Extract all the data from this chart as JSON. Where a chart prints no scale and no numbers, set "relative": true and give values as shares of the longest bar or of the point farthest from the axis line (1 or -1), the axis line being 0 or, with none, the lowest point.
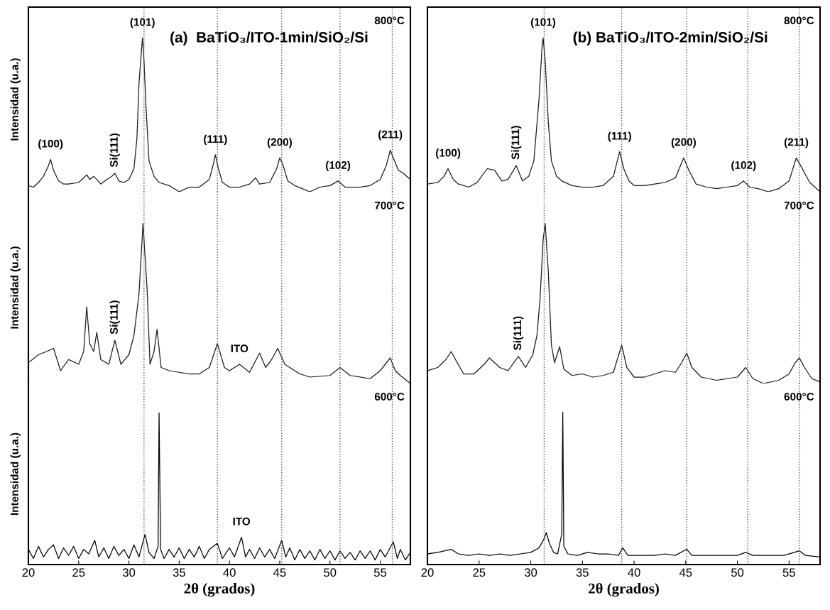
{
  "chart_data": [
    {
      "type": "line",
      "relative": true,
      "title": "(a)  BaTiO₃/ITO-1min/SiO₂/Si",
      "ylabel": "Intensidad (u.a.)",
      "xlim": [
        20,
        58
      ],
      "xticks": [
        20,
        25,
        30,
        35,
        40,
        45,
        50,
        55
      ],
      "tick_labels": false,
      "series": [
        {
          "color": "#1a1a1a",
          "x": [
            20,
            20.5,
            21,
            21.5,
            22,
            22.2,
            22.5,
            23,
            23.5,
            24,
            25,
            25.5,
            25.8,
            26.1,
            26.5,
            26.8,
            27.2,
            27.8,
            28.3,
            28.6,
            29,
            29.5,
            30,
            30.5,
            30.8,
            31.0,
            31.2,
            31.35,
            31.5,
            31.7,
            32,
            32.5,
            33,
            34,
            35,
            36,
            37,
            38,
            38.4,
            38.6,
            38.9,
            39.3,
            40,
            41,
            42,
            42.6,
            43,
            44,
            44.7,
            45.0,
            45.3,
            45.8,
            46.5,
            48,
            49,
            50,
            50.8,
            51.5,
            53,
            54,
            55,
            55.6,
            56.0,
            56.3,
            56.8,
            57.3,
            58
          ],
          "values": [
            0.04,
            0.03,
            0.06,
            0.1,
            0.17,
            0.21,
            0.14,
            0.07,
            0.05,
            0.05,
            0.06,
            0.09,
            0.11,
            0.08,
            0.1,
            0.08,
            0.05,
            0.08,
            0.1,
            0.12,
            0.07,
            0.06,
            0.08,
            0.15,
            0.35,
            0.7,
            0.88,
            1.0,
            0.85,
            0.55,
            0.2,
            0.1,
            0.06,
            0.04,
            0.0,
            0.03,
            0.03,
            0.08,
            0.18,
            0.24,
            0.15,
            0.06,
            0.03,
            0.03,
            0.05,
            0.09,
            0.05,
            0.06,
            0.15,
            0.22,
            0.18,
            0.07,
            0.04,
            0.0,
            0.03,
            0.04,
            0.07,
            0.03,
            0.03,
            0.04,
            0.08,
            0.17,
            0.27,
            0.22,
            0.14,
            0.12,
            0.08
          ]
        }
      ],
      "ref_lines": [
        {
          "axis": "x",
          "value": 31.5,
          "color": "#555555",
          "line_style": "dotted"
        },
        {
          "axis": "x",
          "value": 38.8,
          "color": "#555555",
          "line_style": "dotted"
        },
        {
          "axis": "x",
          "value": 45.2,
          "color": "#555555",
          "line_style": "dotted"
        },
        {
          "axis": "x",
          "value": 51.0,
          "color": "#555555",
          "line_style": "dotted"
        },
        {
          "axis": "x",
          "value": 56.2,
          "color": "#555555",
          "line_style": "dotted"
        }
      ],
      "annotations": [
        "800°C",
        {
          "text": "(100)",
          "x": 22.2,
          "y": 0.21
        },
        {
          "text": "Si(111)",
          "x": 28.6,
          "y": 0.12
        },
        {
          "text": "(101)",
          "x": 31.35,
          "y": 1.0
        },
        {
          "text": "(111)",
          "x": 38.6,
          "y": 0.24
        },
        {
          "text": "(200)",
          "x": 45.0,
          "y": 0.22
        },
        {
          "text": "(102)",
          "x": 50.8,
          "y": 0.07
        },
        {
          "text": "(211)",
          "x": 56.0,
          "y": 0.27
        }
      ]
    },
    {
      "type": "line",
      "relative": true,
      "ylabel": "Intensidad (u.a.)",
      "xlim": [
        20,
        58
      ],
      "xticks": [
        20,
        25,
        30,
        35,
        40,
        45,
        50,
        55
      ],
      "tick_labels": false,
      "series": [
        {
          "color": "#1a1a1a",
          "x": [
            20,
            21,
            21.8,
            22.5,
            23.2,
            24,
            25,
            25.5,
            25.8,
            26.1,
            26.5,
            26.8,
            27.2,
            28,
            28.6,
            29.2,
            30,
            30.5,
            31.0,
            31.4,
            31.8,
            32.1,
            32.5,
            32.8,
            33.2,
            34,
            35,
            36,
            37,
            38,
            38.8,
            39.5,
            40,
            41,
            42,
            43,
            43.6,
            44.2,
            44.8,
            45.5,
            46,
            47,
            48,
            50,
            51,
            52,
            54,
            55,
            55.5,
            56.0,
            56.5,
            57,
            58
          ],
          "values": [
            0.13,
            0.18,
            0.2,
            0.22,
            0.08,
            0.15,
            0.12,
            0.2,
            0.48,
            0.25,
            0.2,
            0.32,
            0.15,
            0.12,
            0.27,
            0.12,
            0.18,
            0.3,
            0.56,
            1.0,
            0.6,
            0.12,
            0.2,
            0.34,
            0.1,
            0.08,
            0.07,
            0.06,
            0.06,
            0.1,
            0.25,
            0.1,
            0.08,
            0.12,
            0.07,
            0.19,
            0.1,
            0.15,
            0.22,
            0.12,
            0.1,
            0.06,
            0.04,
            0.05,
            0.1,
            0.05,
            0.03,
            0.08,
            0.12,
            0.16,
            0.08,
            0.05,
            0.0
          ]
        }
      ],
      "ref_lines": [
        {
          "axis": "x",
          "value": 31.5,
          "color": "#555555",
          "line_style": "dotted"
        },
        {
          "axis": "x",
          "value": 38.8,
          "color": "#555555",
          "line_style": "dotted"
        },
        {
          "axis": "x",
          "value": 45.2,
          "color": "#555555",
          "line_style": "dotted"
        },
        {
          "axis": "x",
          "value": 51.0,
          "color": "#555555",
          "line_style": "dotted"
        },
        {
          "axis": "x",
          "value": 56.2,
          "color": "#555555",
          "line_style": "dotted"
        }
      ],
      "annotations": [
        "700°C",
        {
          "text": "Si(111)",
          "x": 28.6,
          "y": 0.27
        },
        {
          "text": "ITO",
          "x": 41,
          "y": 0.12
        }
      ]
    },
    {
      "type": "line",
      "relative": true,
      "ylabel": "Intensidad (u.a.)",
      "xlabel": "2θ (grados)",
      "xlim": [
        20,
        58
      ],
      "xticks": [
        20,
        25,
        30,
        35,
        40,
        45,
        50,
        55
      ],
      "tick_labels": "x",
      "series": [
        {
          "color": "#000000",
          "x": [
            20,
            20.5,
            21,
            21.5,
            22,
            22.5,
            23,
            23.5,
            24,
            24.5,
            25,
            25.5,
            26,
            26.6,
            27,
            27.5,
            28,
            28.5,
            29,
            29.5,
            30,
            30.5,
            31,
            31.6,
            32,
            32.5,
            32.9,
            33.0,
            33.15,
            33.5,
            34,
            34.5,
            35,
            35.5,
            36,
            36.5,
            37,
            37.5,
            38,
            38.8,
            39.3,
            40,
            40.5,
            41.2,
            41.6,
            42,
            42.5,
            43,
            43.5,
            44,
            44.5,
            45.2,
            45.6,
            46,
            46.5,
            47,
            47.5,
            48,
            48.5,
            49,
            49.5,
            50,
            50.5,
            51,
            51.5,
            52,
            52.5,
            53,
            53.5,
            54,
            54.5,
            55,
            55.5,
            56.3,
            56.7,
            57,
            57.5,
            58
          ],
          "values": [
            0.1,
            0.04,
            0.12,
            0.05,
            0.1,
            0.13,
            0.04,
            0.11,
            0.06,
            0.12,
            0.04,
            0.1,
            0.07,
            0.16,
            0.05,
            0.11,
            0.04,
            0.12,
            0.06,
            0.1,
            0.04,
            0.13,
            0.05,
            0.2,
            0.08,
            0.04,
            0.12,
            1.0,
            0.1,
            0.04,
            0.1,
            0.05,
            0.11,
            0.04,
            0.1,
            0.05,
            0.12,
            0.04,
            0.1,
            0.14,
            0.04,
            0.11,
            0.05,
            0.18,
            0.05,
            0.1,
            0.04,
            0.11,
            0.05,
            0.1,
            0.04,
            0.16,
            0.05,
            0.11,
            0.03,
            0.1,
            0.04,
            0.09,
            0.03,
            0.1,
            0.04,
            0.09,
            0.03,
            0.09,
            0.04,
            0.08,
            0.03,
            0.09,
            0.04,
            0.09,
            0.03,
            0.1,
            0.05,
            0.15,
            0.04,
            0.1,
            0.03,
            0.08
          ]
        }
      ],
      "ref_lines": [
        {
          "axis": "x",
          "value": 31.5,
          "color": "#555555",
          "line_style": "dotted"
        },
        {
          "axis": "x",
          "value": 38.8,
          "color": "#555555",
          "line_style": "dotted"
        },
        {
          "axis": "x",
          "value": 45.2,
          "color": "#555555",
          "line_style": "dotted"
        },
        {
          "axis": "x",
          "value": 51.0,
          "color": "#555555",
          "line_style": "dotted"
        },
        {
          "axis": "x",
          "value": 56.2,
          "color": "#555555",
          "line_style": "dotted"
        }
      ],
      "annotations": [
        "600°C",
        {
          "text": "ITO",
          "x": 41.2,
          "y": 0.18
        }
      ]
    },
    {
      "type": "line",
      "relative": true,
      "title": "(b) BaTiO₃/ITO-2min/SiO₂/Si",
      "xlim": [
        20,
        58
      ],
      "xticks": [
        20,
        25,
        30,
        35,
        40,
        45,
        50,
        55
      ],
      "tick_labels": false,
      "series": [
        {
          "color": "#1a1a1a",
          "x": [
            20,
            21,
            21.6,
            22.0,
            22.5,
            23,
            24,
            24.8,
            25.8,
            26.5,
            27.2,
            27.8,
            28.6,
            29.2,
            29.8,
            30.3,
            30.8,
            31.1,
            31.2,
            31.4,
            31.7,
            32.0,
            32.5,
            33,
            34,
            35,
            36,
            37,
            38,
            38.6,
            39,
            39.5,
            40,
            41,
            42,
            43,
            44,
            44.8,
            45.3,
            46,
            47,
            48,
            49,
            50,
            50.6,
            51.2,
            52,
            53,
            54,
            55,
            55.7,
            56.2,
            57,
            58
          ],
          "values": [
            0.05,
            0.06,
            0.1,
            0.15,
            0.08,
            0.05,
            0.03,
            0.06,
            0.15,
            0.14,
            0.07,
            0.08,
            0.17,
            0.07,
            0.1,
            0.2,
            0.6,
            0.95,
            1.0,
            0.85,
            0.45,
            0.2,
            0.1,
            0.07,
            0.04,
            0.03,
            0.03,
            0.04,
            0.1,
            0.26,
            0.15,
            0.07,
            0.04,
            0.04,
            0.05,
            0.06,
            0.09,
            0.22,
            0.14,
            0.05,
            0.03,
            0.02,
            0.03,
            0.04,
            0.07,
            0.03,
            0.02,
            0.0,
            0.02,
            0.07,
            0.22,
            0.16,
            0.06,
            0.0
          ]
        }
      ],
      "ref_lines": [
        {
          "axis": "x",
          "value": 31.3,
          "color": "#555555",
          "line_style": "dotted"
        },
        {
          "axis": "x",
          "value": 38.8,
          "color": "#555555",
          "line_style": "dotted"
        },
        {
          "axis": "x",
          "value": 45.1,
          "color": "#555555",
          "line_style": "dotted"
        },
        {
          "axis": "x",
          "value": 51.0,
          "color": "#555555",
          "line_style": "dotted"
        },
        {
          "axis": "x",
          "value": 56.0,
          "color": "#555555",
          "line_style": "dotted"
        }
      ],
      "annotations": [
        "800°C",
        {
          "text": "(100)",
          "x": 22.0,
          "y": 0.15
        },
        {
          "text": "Si(111)",
          "x": 28.6,
          "y": 0.17
        },
        {
          "text": "(101)",
          "x": 31.2,
          "y": 1.0
        },
        {
          "text": "(111)",
          "x": 38.6,
          "y": 0.26
        },
        {
          "text": "(200)",
          "x": 44.8,
          "y": 0.22
        },
        {
          "text": "(102)",
          "x": 50.6,
          "y": 0.07
        },
        {
          "text": "(211)",
          "x": 55.7,
          "y": 0.22
        }
      ]
    },
    {
      "type": "line",
      "relative": true,
      "xlim": [
        20,
        58
      ],
      "xticks": [
        20,
        25,
        30,
        35,
        40,
        45,
        50,
        55
      ],
      "tick_labels": false,
      "series": [
        {
          "color": "#1a1a1a",
          "x": [
            20,
            21,
            21.8,
            22.3,
            22.8,
            23.5,
            24.5,
            25.5,
            26,
            27,
            27.8,
            28.8,
            29.5,
            30.2,
            30.6,
            30.9,
            31.2,
            31.4,
            31.7,
            32.0,
            32.3,
            32.8,
            33.2,
            34,
            35,
            36,
            37,
            38,
            38.8,
            39.3,
            40,
            41,
            42,
            43,
            44,
            44.6,
            45.1,
            45.6,
            46.5,
            48,
            49,
            50,
            50.8,
            51.5,
            52.5,
            54,
            55,
            55.6,
            56.0,
            56.5,
            57.2,
            58
          ],
          "values": [
            0.08,
            0.1,
            0.15,
            0.2,
            0.14,
            0.06,
            0.06,
            0.12,
            0.16,
            0.1,
            0.08,
            0.17,
            0.1,
            0.18,
            0.3,
            0.53,
            0.9,
            1.0,
            0.7,
            0.24,
            0.13,
            0.23,
            0.09,
            0.05,
            0.06,
            0.04,
            0.05,
            0.07,
            0.24,
            0.1,
            0.04,
            0.04,
            0.06,
            0.08,
            0.07,
            0.13,
            0.19,
            0.1,
            0.04,
            0.02,
            0.03,
            0.04,
            0.1,
            0.03,
            0.0,
            0.02,
            0.06,
            0.13,
            0.16,
            0.1,
            0.03,
            0.01
          ]
        }
      ],
      "ref_lines": [
        {
          "axis": "x",
          "value": 31.3,
          "color": "#555555",
          "line_style": "dotted"
        },
        {
          "axis": "x",
          "value": 38.8,
          "color": "#555555",
          "line_style": "dotted"
        },
        {
          "axis": "x",
          "value": 45.1,
          "color": "#555555",
          "line_style": "dotted"
        },
        {
          "axis": "x",
          "value": 51.0,
          "color": "#555555",
          "line_style": "dotted"
        },
        {
          "axis": "x",
          "value": 56.0,
          "color": "#555555",
          "line_style": "dotted"
        }
      ],
      "annotations": [
        "700°C",
        {
          "text": "Si(111)",
          "x": 28.8,
          "y": 0.17
        }
      ]
    },
    {
      "type": "line",
      "relative": true,
      "xlabel": "2θ (grados)",
      "xlim": [
        20,
        58
      ],
      "xticks": [
        20,
        25,
        30,
        35,
        40,
        45,
        50,
        55
      ],
      "tick_labels": "x",
      "series": [
        {
          "color": "#000000",
          "x": [
            20,
            21,
            22.3,
            23,
            24,
            25,
            26,
            27,
            28,
            29,
            30,
            30.8,
            31.3,
            31.5,
            31.8,
            32.2,
            32.6,
            33.0,
            33.1,
            33.2,
            33.6,
            34.5,
            35.5,
            36.5,
            37.5,
            38.5,
            38.9,
            39.4,
            40.5,
            42,
            43,
            44,
            44.8,
            45.1,
            45.6,
            47,
            48.5,
            50,
            50.8,
            51.5,
            53,
            54.5,
            55.5,
            56.0,
            56.6,
            58
          ],
          "values": [
            0.07,
            0.08,
            0.1,
            0.07,
            0.06,
            0.07,
            0.06,
            0.07,
            0.06,
            0.07,
            0.08,
            0.11,
            0.17,
            0.21,
            0.14,
            0.08,
            0.07,
            0.2,
            1.0,
            0.12,
            0.07,
            0.06,
            0.08,
            0.07,
            0.07,
            0.06,
            0.11,
            0.06,
            0.06,
            0.06,
            0.07,
            0.06,
            0.09,
            0.1,
            0.06,
            0.06,
            0.06,
            0.06,
            0.08,
            0.06,
            0.06,
            0.06,
            0.08,
            0.09,
            0.06,
            0.05
          ]
        }
      ],
      "ref_lines": [
        {
          "axis": "x",
          "value": 31.3,
          "color": "#555555",
          "line_style": "dotted"
        },
        {
          "axis": "x",
          "value": 38.8,
          "color": "#555555",
          "line_style": "dotted"
        },
        {
          "axis": "x",
          "value": 45.1,
          "color": "#555555",
          "line_style": "dotted"
        },
        {
          "axis": "x",
          "value": 51.0,
          "color": "#555555",
          "line_style": "dotted"
        },
        {
          "axis": "x",
          "value": 56.0,
          "color": "#555555",
          "line_style": "dotted"
        }
      ],
      "annotations": [
        "600°C"
      ]
    }
  ]
}
